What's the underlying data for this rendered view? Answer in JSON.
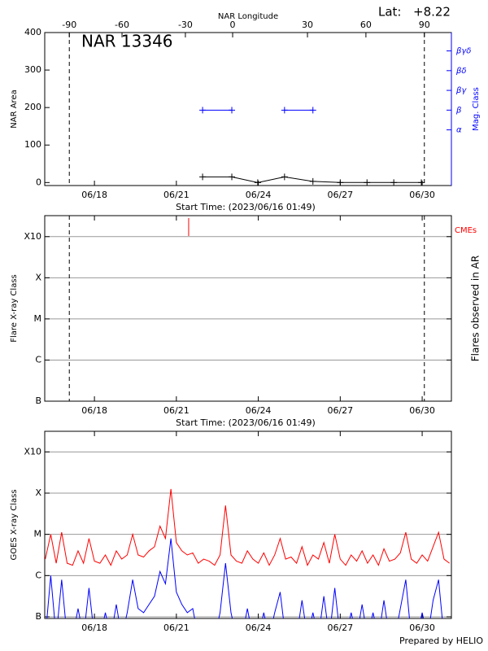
{
  "chart_data": [
    {
      "type": "line",
      "title": "NAR 13346",
      "lat_label": "Lat:",
      "lat": "+8.22",
      "x2label": "NAR Longitude",
      "xlabel": "Start Time: (2023/06/16 01:49)",
      "ylabel": "NAR Area",
      "y2label": "Mag. Class",
      "y2color": "#0000ff",
      "xlim": [
        16.18,
        31.07
      ],
      "xticks": [
        {
          "value": 18,
          "label": "06/18"
        },
        {
          "value": 21,
          "label": "06/21"
        },
        {
          "value": 24,
          "label": "06/24"
        },
        {
          "value": 27,
          "label": "06/27"
        },
        {
          "value": 30,
          "label": "06/30"
        }
      ],
      "x2ticks": [
        {
          "value": 17.08,
          "label": "-90"
        },
        {
          "value": 19.01,
          "label": "-60"
        },
        {
          "value": 21.33,
          "label": "-30"
        },
        {
          "value": 23.06,
          "label": "0"
        },
        {
          "value": 25.8,
          "label": "30"
        },
        {
          "value": 27.94,
          "label": "60"
        },
        {
          "value": 30.08,
          "label": "90"
        }
      ],
      "limb_x": [
        17.08,
        30.08
      ],
      "ylim": [
        -8,
        400
      ],
      "yticks": [
        0,
        100,
        200,
        300,
        400
      ],
      "y2lim": [
        -1.82,
        5.93
      ],
      "y2ticks": [
        {
          "value": 1,
          "label": "α"
        },
        {
          "value": 2,
          "label": "β"
        },
        {
          "value": 3,
          "label": "βγ"
        },
        {
          "value": 4,
          "label": "βδ"
        },
        {
          "value": 5,
          "label": "βγδ"
        }
      ],
      "grid": false,
      "series": [
        {
          "color": "#000000",
          "x": [
            21.96,
            23.03,
            23.98,
            24.96,
            26.0,
            27.0,
            27.98,
            28.96,
            29.97
          ],
          "values": [
            15,
            15,
            0,
            15,
            3,
            0,
            0,
            0,
            0
          ]
        },
        {
          "color": "#0000ff",
          "axis": "y2",
          "x": [
            21.96,
            23.03,
            null,
            24.96,
            26.0
          ],
          "values": [
            2,
            2,
            null,
            2,
            2
          ]
        }
      ]
    },
    {
      "type": "scatter",
      "xlabel": "Start Time: (2023/06/16 01:49)",
      "ylabel": "Flare X-ray Class",
      "y2label": "Flares observed in AR",
      "y2color": "#000000",
      "xlim": [
        16.18,
        31.07
      ],
      "xticks": [
        {
          "value": 18,
          "label": "06/18"
        },
        {
          "value": 21,
          "label": "06/21"
        },
        {
          "value": 24,
          "label": "06/24"
        },
        {
          "value": 27,
          "label": "06/27"
        },
        {
          "value": 30,
          "label": "06/30"
        }
      ],
      "limb_x": [
        17.08,
        30.08
      ],
      "ylim": [
        -7,
        -2.49
      ],
      "yticks": [
        {
          "value": -7,
          "label": "B"
        },
        {
          "value": -6,
          "label": "C"
        },
        {
          "value": -5,
          "label": "M"
        },
        {
          "value": -4,
          "label": "X"
        },
        {
          "value": -3,
          "label": "X10"
        }
      ],
      "grid": true,
      "cme": {
        "label": "CMEs",
        "color": "#ff0000",
        "x": [
          21.45
        ]
      }
    },
    {
      "type": "line",
      "ylabel": "GOES X-ray Class",
      "xlim": [
        16.18,
        31.07
      ],
      "xticks": [
        {
          "value": 18,
          "label": "06/18"
        },
        {
          "value": 21,
          "label": "06/21"
        },
        {
          "value": 24,
          "label": "06/24"
        },
        {
          "value": 27,
          "label": "06/27"
        },
        {
          "value": 30,
          "label": "06/30"
        }
      ],
      "ylim": [
        -7.04,
        -2.5
      ],
      "yticks": [
        {
          "value": -7,
          "label": "B"
        },
        {
          "value": -6,
          "label": "C"
        },
        {
          "value": -5,
          "label": "M"
        },
        {
          "value": -4,
          "label": "X"
        },
        {
          "value": -3,
          "label": "X10"
        }
      ],
      "grid": true,
      "x": [
        16.2,
        16.4,
        16.6,
        16.8,
        17.0,
        17.2,
        17.4,
        17.6,
        17.8,
        18.0,
        18.2,
        18.4,
        18.6,
        18.8,
        19.0,
        19.2,
        19.4,
        19.6,
        19.8,
        20.0,
        20.2,
        20.4,
        20.6,
        20.8,
        21.0,
        21.2,
        21.4,
        21.6,
        21.8,
        22.0,
        22.2,
        22.4,
        22.6,
        22.8,
        23.0,
        23.2,
        23.4,
        23.6,
        23.8,
        24.0,
        24.2,
        24.4,
        24.6,
        24.8,
        25.0,
        25.2,
        25.4,
        25.6,
        25.8,
        26.0,
        26.2,
        26.4,
        26.6,
        26.8,
        27.0,
        27.2,
        27.4,
        27.6,
        27.8,
        28.0,
        28.2,
        28.4,
        28.6,
        28.8,
        29.0,
        29.2,
        29.4,
        29.6,
        29.8,
        30.0,
        30.2,
        30.4,
        30.6,
        30.8,
        31.0
      ],
      "series": [
        {
          "color": "#ff0000",
          "values": [
            -5.6,
            -5.0,
            -5.7,
            -4.95,
            -5.7,
            -5.75,
            -5.4,
            -5.7,
            -5.1,
            -5.65,
            -5.7,
            -5.5,
            -5.75,
            -5.4,
            -5.6,
            -5.5,
            -5.0,
            -5.5,
            -5.55,
            -5.4,
            -5.3,
            -4.8,
            -5.1,
            -3.9,
            -5.2,
            -5.4,
            -5.5,
            -5.45,
            -5.7,
            -5.6,
            -5.65,
            -5.75,
            -5.5,
            -4.3,
            -5.5,
            -5.65,
            -5.7,
            -5.4,
            -5.6,
            -5.7,
            -5.45,
            -5.75,
            -5.5,
            -5.1,
            -5.6,
            -5.55,
            -5.7,
            -5.3,
            -5.75,
            -5.5,
            -5.6,
            -5.2,
            -5.7,
            -5.0,
            -5.6,
            -5.75,
            -5.5,
            -5.65,
            -5.4,
            -5.7,
            -5.5,
            -5.75,
            -5.35,
            -5.65,
            -5.6,
            -5.45,
            -4.95,
            -5.6,
            -5.7,
            -5.5,
            -5.65,
            -5.3,
            -4.95,
            -5.6,
            -5.7
          ]
        },
        {
          "color": "#0000ff",
          "values": [
            -7.5,
            -6.0,
            -7.5,
            -6.1,
            -7.5,
            -7.5,
            -6.8,
            -7.5,
            -6.3,
            -7.5,
            -7.5,
            -6.9,
            -7.5,
            -6.7,
            -7.5,
            -6.9,
            -6.1,
            -6.8,
            -6.9,
            -6.7,
            -6.5,
            -5.9,
            -6.2,
            -5.1,
            -6.4,
            -6.7,
            -6.9,
            -6.8,
            -7.5,
            -7.5,
            -7.5,
            -7.5,
            -6.9,
            -5.7,
            -6.9,
            -7.5,
            -7.5,
            -6.8,
            -7.5,
            -7.5,
            -6.9,
            -7.5,
            -6.9,
            -6.4,
            -7.5,
            -7.5,
            -7.5,
            -6.6,
            -7.5,
            -6.9,
            -7.5,
            -6.5,
            -7.5,
            -6.3,
            -7.5,
            -7.5,
            -6.9,
            -7.5,
            -6.7,
            -7.5,
            -6.9,
            -7.5,
            -6.6,
            -7.5,
            -7.5,
            -6.8,
            -6.1,
            -7.5,
            -7.5,
            -6.9,
            -7.5,
            -6.6,
            -6.1,
            -7.5,
            -7.5
          ]
        }
      ]
    }
  ],
  "footer": "Prepared by HELIO"
}
